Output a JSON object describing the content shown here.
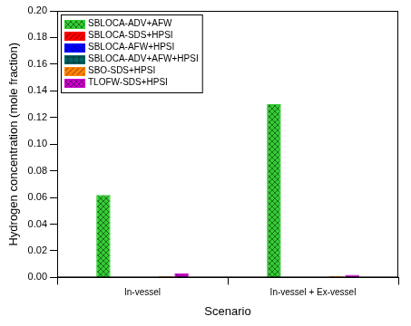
{
  "chart_data": {
    "type": "bar",
    "x_label": "Scenario",
    "y_label": "Hydrogen concentration (mole fraction)",
    "categories": [
      "In-vessel",
      "In-vessel + Ex-vessel"
    ],
    "series": [
      {
        "name": "SBLOCA-ADV+AFW",
        "color": "#33cc33",
        "values": [
          0.062,
          0.13
        ]
      },
      {
        "name": "SBLOCA-SDS+HPSI",
        "color": "#ff0000",
        "values": [
          0.0003,
          0.0003
        ]
      },
      {
        "name": "SBLOCA-AFW+HPSI",
        "color": "#0000ff",
        "values": [
          0.0002,
          0.0002
        ]
      },
      {
        "name": "SBLOCA-ADV+AFW+HPSI",
        "color": "#006666",
        "values": [
          0.0002,
          0.0002
        ]
      },
      {
        "name": "SBO-SDS+HPSI",
        "color": "#ff8000",
        "values": [
          0.001,
          0.001
        ]
      },
      {
        "name": "TLOFW-SDS+HPSI",
        "color": "#cc00cc",
        "values": [
          0.003,
          0.002
        ]
      }
    ],
    "ylim": [
      0,
      0.2
    ],
    "yticks": [
      {
        "value": 0,
        "label": "0.00"
      },
      0.02,
      0.04,
      0.06,
      0.08,
      {
        "value": 0.1,
        "label": "0.10"
      },
      0.12,
      0.14,
      0.16,
      0.18,
      {
        "value": 0.2,
        "label": "0.20"
      }
    ],
    "grid": false,
    "legend": "upper left"
  }
}
